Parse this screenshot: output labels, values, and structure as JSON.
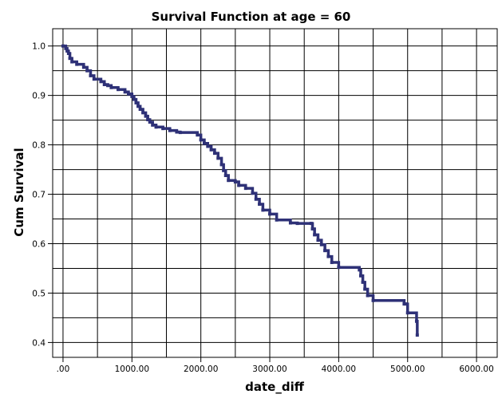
{
  "chart_data": {
    "type": "line",
    "title": "Survival Function at age = 60",
    "xlabel": "date_diff",
    "ylabel": "Cum Survival",
    "xlim": [
      -150,
      6300
    ],
    "ylim": [
      0.37,
      1.035
    ],
    "x_ticks": [
      0,
      1000,
      2000,
      3000,
      4000,
      5000,
      6000
    ],
    "x_tick_labels": [
      ".00",
      "1000.00",
      "2000.00",
      "3000.00",
      "4000.00",
      "5000.00",
      "6000.00"
    ],
    "y_ticks": [
      0.4,
      0.5,
      0.6,
      0.7,
      0.8,
      0.9,
      1.0
    ],
    "y_tick_labels": [
      "0.4",
      "0.5",
      "0.6",
      "0.7",
      "0.8",
      "0.9",
      "1.0"
    ],
    "x_gridlines": [
      0,
      500,
      1000,
      1500,
      2000,
      2500,
      3000,
      3500,
      4000,
      4500,
      5000,
      5500,
      6000
    ],
    "y_gridlines": [
      0.4,
      0.45,
      0.5,
      0.55,
      0.6,
      0.65,
      0.7,
      0.75,
      0.8,
      0.85,
      0.9,
      0.95,
      1.0
    ],
    "grid": true,
    "legend": "none",
    "series_color": "#2e3177",
    "series": [
      {
        "x": [
          0,
          40,
          60,
          80,
          100,
          130,
          200,
          300,
          350,
          400,
          450,
          550,
          600,
          650,
          700,
          800,
          900,
          950,
          1000,
          1030,
          1060,
          1090,
          1120,
          1160,
          1200,
          1230,
          1260,
          1300,
          1350,
          1450,
          1550,
          1650,
          1700,
          1950,
          2000,
          2050,
          2100,
          2150,
          2200,
          2250,
          2300,
          2330,
          2360,
          2400,
          2500,
          2550,
          2650,
          2750,
          2800,
          2850,
          2900,
          3000,
          3100,
          3300,
          3400,
          3600,
          3620,
          3650,
          3700,
          3750,
          3800,
          3850,
          3900,
          4000,
          4300,
          4320,
          4350,
          4380,
          4420,
          4500,
          4950,
          4970,
          5000,
          5130,
          5140
        ],
        "y": [
          1.0,
          0.995,
          0.99,
          0.985,
          0.975,
          0.968,
          0.963,
          0.957,
          0.95,
          0.94,
          0.933,
          0.928,
          0.922,
          0.92,
          0.916,
          0.912,
          0.907,
          0.903,
          0.898,
          0.892,
          0.885,
          0.878,
          0.872,
          0.865,
          0.858,
          0.851,
          0.846,
          0.84,
          0.836,
          0.833,
          0.829,
          0.826,
          0.825,
          0.82,
          0.81,
          0.803,
          0.797,
          0.79,
          0.783,
          0.773,
          0.76,
          0.748,
          0.738,
          0.728,
          0.725,
          0.718,
          0.712,
          0.702,
          0.69,
          0.68,
          0.668,
          0.66,
          0.648,
          0.642,
          0.641,
          0.641,
          0.63,
          0.618,
          0.607,
          0.598,
          0.586,
          0.574,
          0.562,
          0.552,
          0.547,
          0.535,
          0.522,
          0.508,
          0.495,
          0.485,
          0.478,
          0.478,
          0.46,
          0.443,
          0.415
        ]
      }
    ]
  }
}
